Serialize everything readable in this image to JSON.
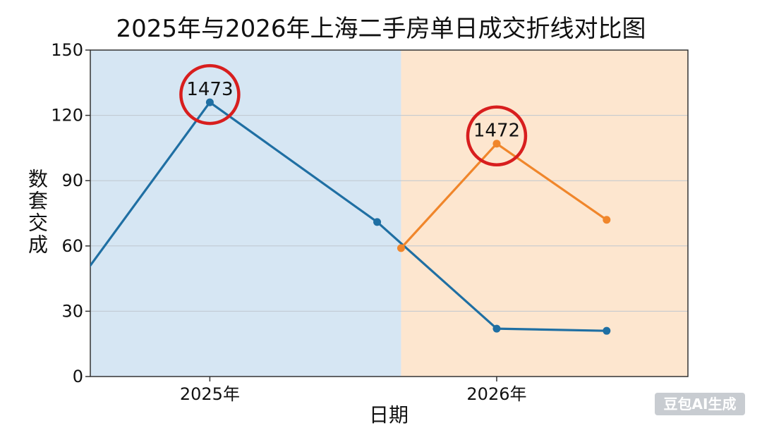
{
  "chart_data": {
    "type": "line",
    "title": "2025年与2026年上海二手房单日成交折线对比图",
    "xlabel": "日期",
    "ylabel": "数套交成",
    "ylim": [
      0,
      150
    ],
    "yticks": [
      0,
      30,
      60,
      90,
      120,
      150
    ],
    "x_tick_labels": [
      {
        "label": "2025年",
        "x": 2
      },
      {
        "label": "2026年",
        "x": 8
      }
    ],
    "xlim": [
      -0.5,
      12
    ],
    "period_split_x": 6,
    "background_regions": [
      {
        "from": -0.5,
        "to": 6,
        "color": "#d6e6f3"
      },
      {
        "from": 6,
        "to": 12,
        "color": "#fde6cf"
      }
    ],
    "grid": true,
    "series": [
      {
        "color": "#1f6fa3",
        "x": [
          -1,
          2,
          5.5,
          8,
          10.3
        ],
        "y": [
          36,
          126,
          71,
          22,
          21
        ]
      },
      {
        "color": "#f0862b",
        "x": [
          6,
          8,
          10.3
        ],
        "y": [
          59,
          107,
          72
        ]
      }
    ],
    "annotations": [
      {
        "text": "1473",
        "x": 2,
        "y": 126,
        "circle_color": "#d81e1e"
      },
      {
        "text": "1472",
        "x": 8,
        "y": 107,
        "circle_color": "#d81e1e"
      }
    ]
  },
  "watermark": "豆包AI生成"
}
